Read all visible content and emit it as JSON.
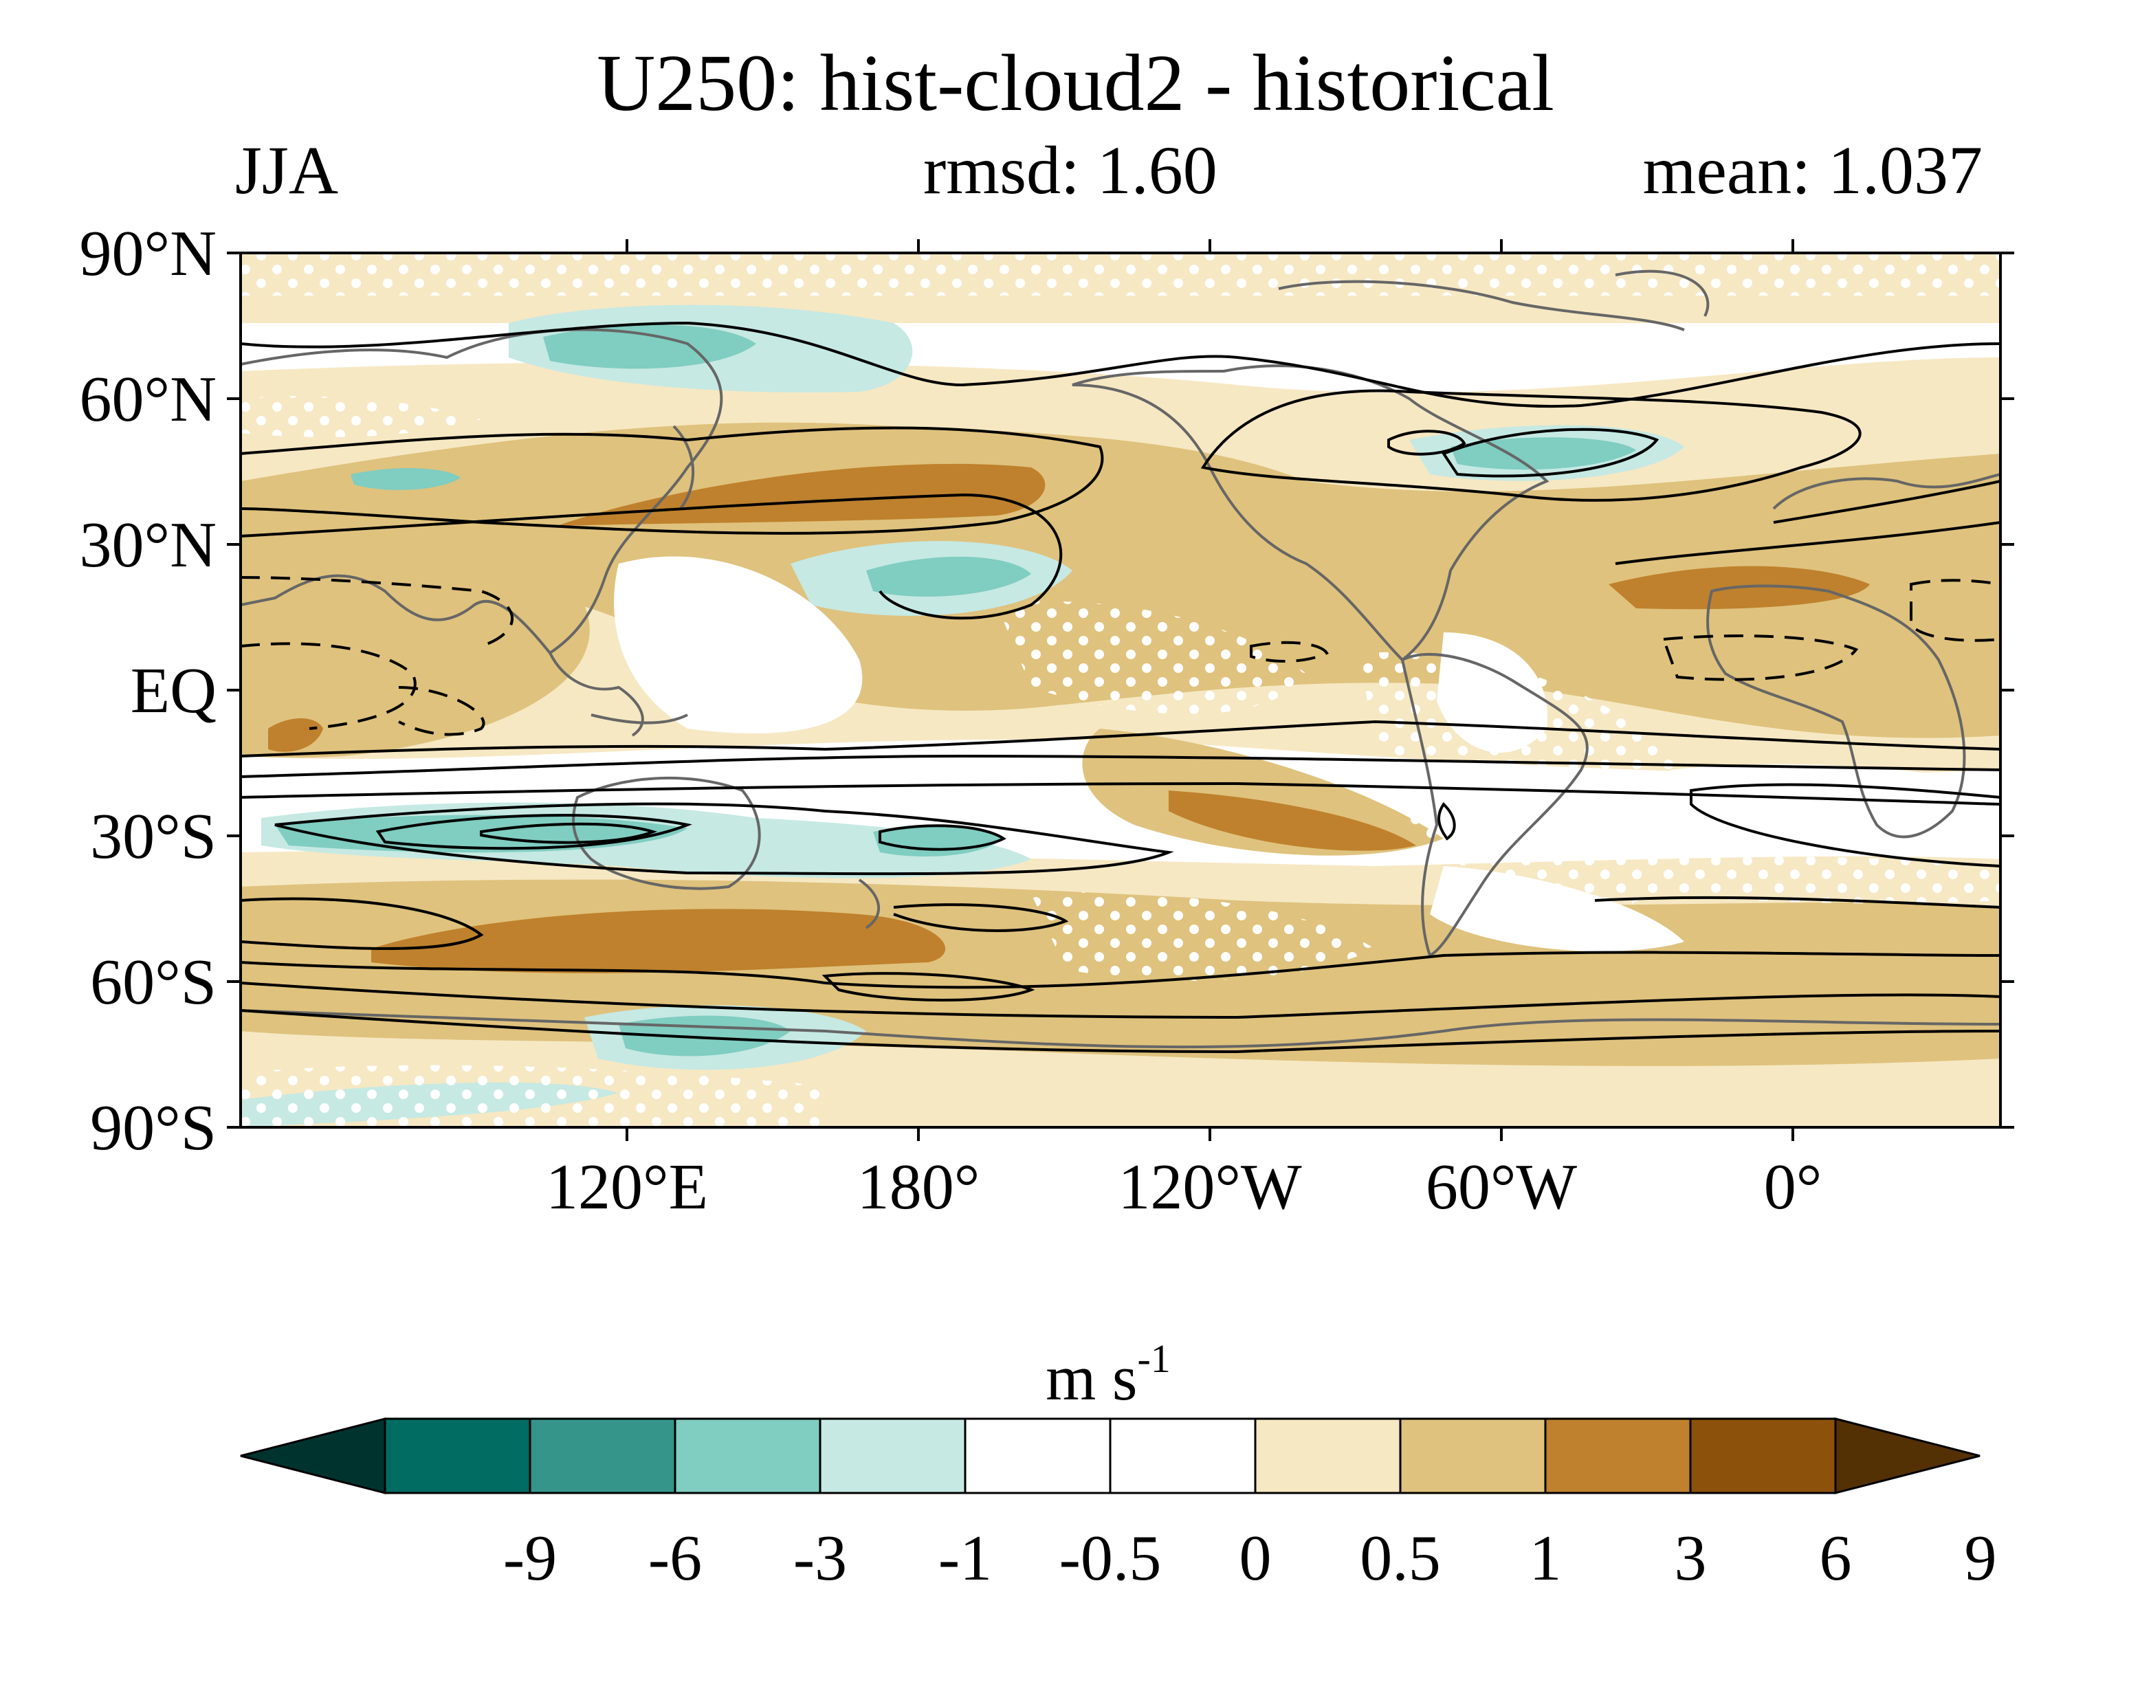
{
  "title": "U250: hist-cloud2 - historical",
  "season": "JJA",
  "rmsd_label": "rmsd: 1.60",
  "mean_label": "mean: 1.037",
  "units_base": "m s",
  "units_exp": "-1",
  "lat_labels": [
    "90°N",
    "60°N",
    "30°N",
    "EQ",
    "30°S",
    "60°S",
    "90°S"
  ],
  "lon_labels": [
    "120°E",
    "180°",
    "120°W",
    "60°W",
    "0°"
  ],
  "colorbar": {
    "ticks": [
      "-9",
      "-6",
      "-3",
      "-1",
      "-0.5",
      "0",
      "0.5",
      "1",
      "3",
      "6",
      "9"
    ],
    "colors": [
      "#00332d",
      "#006c62",
      "#35958a",
      "#80cdc1",
      "#c6e9e3",
      "#ffffff",
      "#ffffff",
      "#f6e8c3",
      "#dfc27d",
      "#bf812d",
      "#8c510a",
      "#543005"
    ]
  }
}
